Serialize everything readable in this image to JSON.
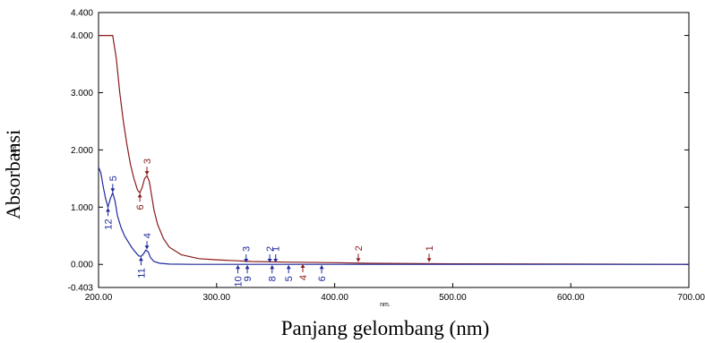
{
  "chart_data": {
    "type": "line",
    "xlabel": "Panjang gelombang  (nm)",
    "xunit": "nm.",
    "ylabel": "Absorbansi",
    "yunit": "Abs.",
    "xlim": [
      200,
      700
    ],
    "ylim": [
      -0.403,
      4.4
    ],
    "x_ticks": [
      "200.00",
      "300.00",
      "400.00",
      "500.00",
      "600.00",
      "700.00"
    ],
    "y_ticks": [
      {
        "value": 4.4,
        "label": "4.400"
      },
      {
        "value": 4.0,
        "label": "4.000"
      },
      {
        "value": 3.0,
        "label": "3.000"
      },
      {
        "value": 2.0,
        "label": "2.000"
      },
      {
        "value": 1.0,
        "label": "1.000"
      },
      {
        "value": 0.0,
        "label": "0.000"
      },
      {
        "value": -0.403,
        "label": "-0.403"
      }
    ],
    "colors": {
      "red": "#8b1a1a",
      "blue": "#1f2a9a"
    },
    "series": [
      {
        "color": "red",
        "points": [
          [
            200,
            4.0
          ],
          [
            206,
            4.0
          ],
          [
            212,
            4.0
          ],
          [
            215,
            3.6
          ],
          [
            218,
            3.0
          ],
          [
            221,
            2.5
          ],
          [
            224,
            2.1
          ],
          [
            227,
            1.75
          ],
          [
            230,
            1.5
          ],
          [
            233,
            1.3
          ],
          [
            235,
            1.25
          ],
          [
            237,
            1.35
          ],
          [
            239,
            1.5
          ],
          [
            241,
            1.55
          ],
          [
            243,
            1.45
          ],
          [
            245,
            1.2
          ],
          [
            247,
            0.95
          ],
          [
            250,
            0.7
          ],
          [
            255,
            0.45
          ],
          [
            260,
            0.3
          ],
          [
            270,
            0.17
          ],
          [
            285,
            0.1
          ],
          [
            300,
            0.08
          ],
          [
            330,
            0.05
          ],
          [
            360,
            0.04
          ],
          [
            400,
            0.03
          ],
          [
            430,
            0.02
          ],
          [
            500,
            0.01
          ],
          [
            600,
            0.005
          ],
          [
            700,
            0.0
          ]
        ]
      },
      {
        "color": "blue",
        "points": [
          [
            200,
            1.7
          ],
          [
            202,
            1.6
          ],
          [
            204,
            1.35
          ],
          [
            206,
            1.15
          ],
          [
            208,
            1.0
          ],
          [
            210,
            1.15
          ],
          [
            212,
            1.25
          ],
          [
            214,
            1.1
          ],
          [
            216,
            0.85
          ],
          [
            219,
            0.65
          ],
          [
            222,
            0.5
          ],
          [
            225,
            0.4
          ],
          [
            228,
            0.3
          ],
          [
            231,
            0.22
          ],
          [
            234,
            0.15
          ],
          [
            236,
            0.14
          ],
          [
            238,
            0.18
          ],
          [
            240,
            0.25
          ],
          [
            242,
            0.22
          ],
          [
            244,
            0.12
          ],
          [
            247,
            0.05
          ],
          [
            252,
            0.02
          ],
          [
            260,
            0.005
          ],
          [
            280,
            0.0
          ],
          [
            400,
            0.0
          ],
          [
            700,
            0.0
          ]
        ]
      }
    ],
    "annotations": [
      {
        "label": "1",
        "x": 480,
        "y": 0.03,
        "color": "red",
        "side": "above"
      },
      {
        "label": "2",
        "x": 420,
        "y": 0.03,
        "color": "red",
        "side": "above"
      },
      {
        "label": "3",
        "x": 241,
        "y": 1.55,
        "color": "red",
        "side": "above"
      },
      {
        "label": "4",
        "x": 373,
        "y": 0.02,
        "color": "red",
        "side": "below"
      },
      {
        "label": "6",
        "x": 235,
        "y": 1.25,
        "color": "red",
        "side": "below"
      },
      {
        "label": "1",
        "x": 350,
        "y": 0.02,
        "color": "blue",
        "side": "above"
      },
      {
        "label": "2",
        "x": 345,
        "y": 0.02,
        "color": "blue",
        "side": "above"
      },
      {
        "label": "3",
        "x": 325,
        "y": 0.02,
        "color": "blue",
        "side": "above"
      },
      {
        "label": "4",
        "x": 241,
        "y": 0.25,
        "color": "blue",
        "side": "above"
      },
      {
        "label": "5",
        "x": 212,
        "y": 1.25,
        "color": "blue",
        "side": "above"
      },
      {
        "label": "5",
        "x": 361,
        "y": 0.0,
        "color": "blue",
        "side": "below"
      },
      {
        "label": "6",
        "x": 389,
        "y": 0.0,
        "color": "blue",
        "side": "below"
      },
      {
        "label": "8",
        "x": 347,
        "y": 0.0,
        "color": "blue",
        "side": "below"
      },
      {
        "label": "9",
        "x": 326,
        "y": 0.0,
        "color": "blue",
        "side": "below"
      },
      {
        "label": "10",
        "x": 318,
        "y": 0.0,
        "color": "blue",
        "side": "below"
      },
      {
        "label": "11",
        "x": 236,
        "y": 0.14,
        "color": "blue",
        "side": "below"
      },
      {
        "label": "12",
        "x": 208,
        "y": 1.0,
        "color": "blue",
        "side": "below"
      }
    ]
  }
}
